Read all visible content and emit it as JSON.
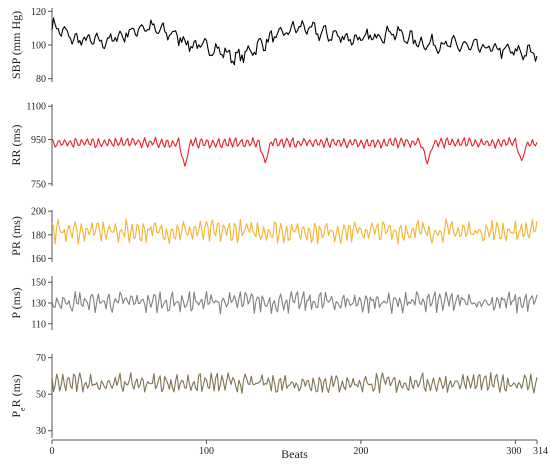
{
  "chart_data": {
    "type": "line",
    "xlabel": "Beats",
    "xlim": [
      0,
      314
    ],
    "xticks": [
      0,
      100,
      200,
      300,
      314
    ],
    "panels": [
      {
        "name": "sbp",
        "ylabel": "SBP (mm Hg)",
        "ylim": [
          78,
          122
        ],
        "yticks": [
          80,
          100,
          120
        ],
        "color": "#000000",
        "base": 102,
        "amp": 4,
        "noise": 3,
        "slow": [
          [
            0,
            112
          ],
          [
            15,
            103
          ],
          [
            35,
            102
          ],
          [
            60,
            111
          ],
          [
            80,
            106
          ],
          [
            90,
            100
          ],
          [
            105,
            98
          ],
          [
            120,
            92
          ],
          [
            140,
            103
          ],
          [
            160,
            111
          ],
          [
            175,
            107
          ],
          [
            200,
            103
          ],
          [
            220,
            108
          ],
          [
            240,
            101
          ],
          [
            260,
            100
          ],
          [
            280,
            98
          ],
          [
            300,
            96
          ],
          [
            314,
            95
          ]
        ]
      },
      {
        "name": "rr",
        "ylabel": "RR (ms)",
        "ylim": [
          740,
          1110
        ],
        "yticks": [
          750,
          950,
          1100
        ],
        "color": "#e8202a",
        "base": 935,
        "amp": 18,
        "noise": 8,
        "dips": [
          [
            86,
            830
          ],
          [
            138,
            845
          ],
          [
            243,
            840
          ],
          [
            304,
            855
          ]
        ]
      },
      {
        "name": "pr",
        "ylabel": "PR (ms)",
        "ylim": [
          157,
          201
        ],
        "yticks": [
          160,
          180,
          200
        ],
        "color": "#f4b331",
        "base": 183,
        "amp": 6,
        "noise": 5
      },
      {
        "name": "p",
        "ylabel": "P (ms)",
        "ylim": [
          104,
          156
        ],
        "yticks": [
          110,
          130,
          150
        ],
        "color": "#808080",
        "base": 131,
        "amp": 6,
        "noise": 6
      },
      {
        "name": "pr-seg",
        "ylabel": "P<tspan baseline-shift='sub' font-size='9'>e</tspan>R (ms)",
        "ylabel_text": "PeR (ms)",
        "ylim": [
          26,
          72
        ],
        "yticks": [
          30,
          50,
          70
        ],
        "color": "#7d7450",
        "base": 56,
        "amp": 3,
        "noise": 3
      }
    ]
  }
}
